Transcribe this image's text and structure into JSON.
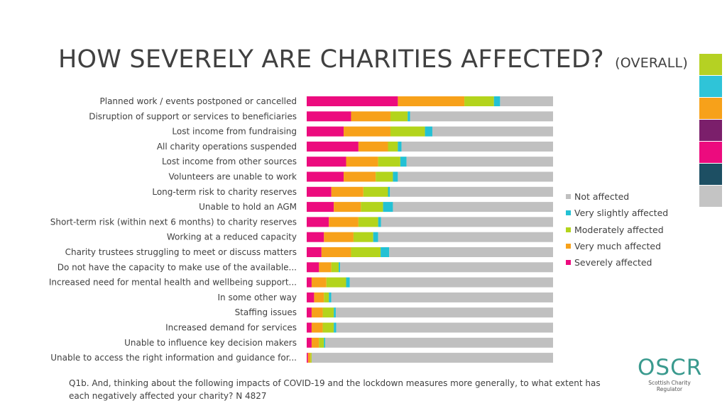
{
  "title": {
    "main": "HOW SEVERELY ARE CHARITIES AFFECTED?",
    "sub": "(OVERALL)"
  },
  "palette": [
    "#b5d123",
    "#2fc4d8",
    "#f7a11a",
    "#7b1f6b",
    "#ec0b7e",
    "#1d4f63",
    "#c4c4c4"
  ],
  "legend": [
    {
      "label": "Not affected",
      "color": "#c0c0c0"
    },
    {
      "label": "Very slightly affected",
      "color": "#23c1d4"
    },
    {
      "label": "Moderately affected",
      "color": "#b3d41c"
    },
    {
      "label": "Very much affected",
      "color": "#f7a11a"
    },
    {
      "label": "Severely affected",
      "color": "#ec0b7e"
    }
  ],
  "chart_data": {
    "type": "bar",
    "orientation": "horizontal",
    "stacked": true,
    "unit": "percent",
    "categories": [
      "Planned work / events postponed or cancelled",
      "Disruption of support or services to beneficiaries",
      "Lost income from fundraising",
      "All charity operations suspended",
      "Lost income from other sources",
      "Volunteers are unable to work",
      "Long-term risk to charity reserves",
      "Unable to hold an AGM",
      "Short-term risk (within next 6 months) to charity reserves",
      "Working at a reduced capacity",
      "Charity trustees struggling to meet or discuss matters",
      "Do not have the capacity to make use of the available...",
      "Increased need for mental health and wellbeing support...",
      "In some other way",
      "Staffing issues",
      "Increased demand for services",
      "Unable to influence key decision makers",
      "Unable to access the right information and guidance for..."
    ],
    "series": [
      {
        "name": "Severely affected",
        "color": "#ec0b7e",
        "values": [
          37,
          18,
          15,
          21,
          16,
          15,
          10,
          11,
          9,
          7,
          6,
          5,
          2,
          3,
          2,
          2,
          2,
          0.5
        ]
      },
      {
        "name": "Very much affected",
        "color": "#f7a11a",
        "values": [
          27,
          16,
          19,
          12,
          13,
          13,
          13,
          11,
          12,
          12,
          12,
          5,
          6,
          4,
          4.5,
          4.5,
          3,
          1
        ]
      },
      {
        "name": "Moderately affected",
        "color": "#b3d41c",
        "values": [
          12,
          7,
          14,
          4,
          9,
          7,
          10,
          9,
          8,
          8,
          12,
          3,
          8,
          2,
          4.5,
          4.5,
          2,
          0.5
        ]
      },
      {
        "name": "Very slightly affected",
        "color": "#23c1d4",
        "values": [
          2.5,
          1,
          3,
          1.5,
          2.5,
          2,
          0.8,
          4,
          1.2,
          2,
          3.5,
          0.6,
          1.5,
          1,
          0.8,
          1,
          0.5,
          0
        ]
      },
      {
        "name": "Not affected",
        "color": "#c0c0c0",
        "values": [
          21.5,
          58,
          49,
          61.5,
          59.5,
          63,
          66.2,
          65,
          69.8,
          71,
          66.5,
          86.4,
          82.5,
          90,
          88.2,
          88,
          92.5,
          98
        ]
      }
    ],
    "xlim": [
      0,
      100
    ],
    "legend_position": "right"
  },
  "question": "Q1b. And, thinking about the following impacts of COVID-19 and the lockdown measures more generally, to what extent has each negatively affected your charity? N 4827",
  "logo": {
    "word": "OSCR",
    "tagline": "Scottish Charity Regulator"
  }
}
